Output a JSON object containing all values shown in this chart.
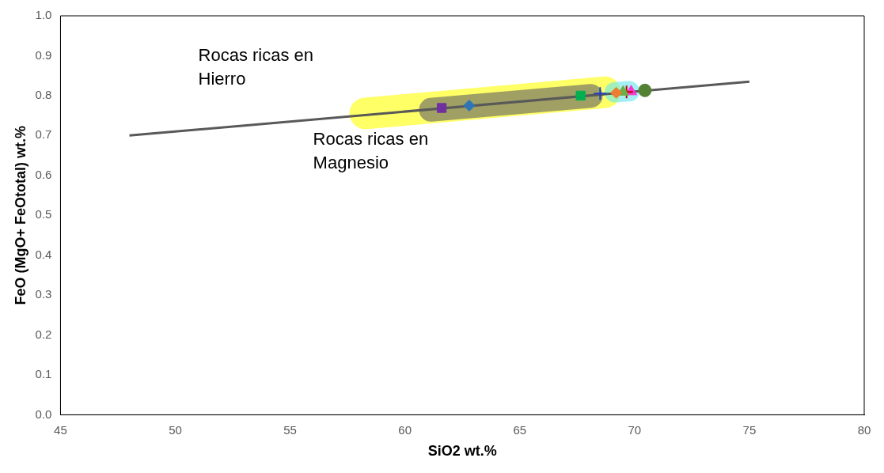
{
  "chart_data": {
    "type": "scatter",
    "xlabel": "SiO2 wt.%",
    "ylabel": "FeO (MgO+ FeOtotal) wt.%",
    "xlim": [
      45,
      80
    ],
    "xticks": [
      45,
      50,
      55,
      60,
      65,
      70,
      75,
      80
    ],
    "ylim": [
      0,
      1
    ],
    "yticks": [
      {
        "value": 0,
        "label": "0.0"
      },
      {
        "value": 0.1,
        "label": "0.1"
      },
      {
        "value": 0.2,
        "label": "0.2"
      },
      {
        "value": 0.3,
        "label": "0.3"
      },
      {
        "value": 0.4,
        "label": "0.4"
      },
      {
        "value": 0.5,
        "label": "0.5"
      },
      {
        "value": 0.6,
        "label": "0.6"
      },
      {
        "value": 0.7,
        "label": "0.7"
      },
      {
        "value": 0.8,
        "label": "0.8"
      },
      {
        "value": 0.9,
        "label": "0.9"
      },
      {
        "value": 1,
        "label": "1.0"
      }
    ],
    "grid": false,
    "legend": false,
    "annotations": [
      "Rocas ricas en Hierro",
      "Rocas ricas en Magnesio"
    ],
    "series": [
      {
        "type": "line",
        "color": "#595959",
        "x": [
          48,
          75
        ],
        "values": [
          0.7,
          0.835
        ],
        "marker": "none"
      },
      {
        "color": "#7030a0",
        "x": [
          61.6
        ],
        "values": [
          0.769
        ],
        "marker": "square"
      },
      {
        "color": "#2e75b6",
        "x": [
          62.8
        ],
        "values": [
          0.775
        ],
        "marker": "diamond"
      },
      {
        "color": "#00b050",
        "x": [
          67.65
        ],
        "values": [
          0.8
        ],
        "marker": "square"
      },
      {
        "color": "#1f3fbf",
        "x": [
          68.5
        ],
        "values": [
          0.805
        ],
        "marker": "cross"
      },
      {
        "color": "#ed7d31",
        "x": [
          69.2
        ],
        "values": [
          0.807
        ],
        "marker": "diamond"
      },
      {
        "color": "#70ad47",
        "x": [
          69.5
        ],
        "values": [
          0.809
        ],
        "marker": "triangle"
      },
      {
        "color": "#c00000",
        "x": [
          69.65
        ],
        "values": [
          0.809
        ],
        "marker": "cross"
      },
      {
        "color": "#ff33cc",
        "x": [
          69.85
        ],
        "values": [
          0.81
        ],
        "marker": "triangle"
      },
      {
        "color": "#548235",
        "x": [
          70.45
        ],
        "values": [
          0.813
        ],
        "marker": "circle"
      }
    ]
  }
}
